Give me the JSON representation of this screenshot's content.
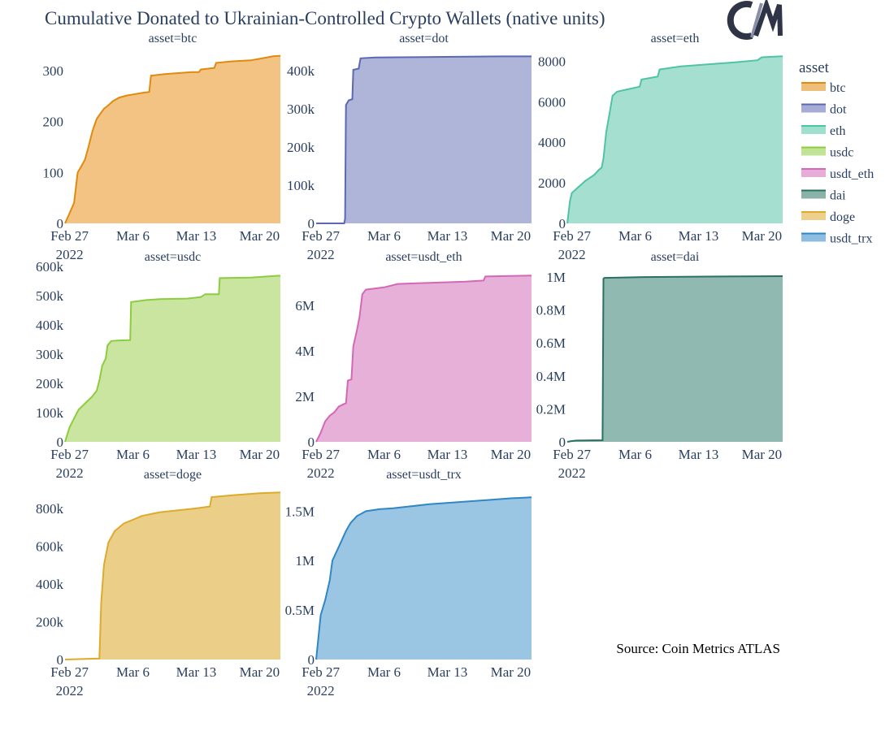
{
  "title": "Cumulative Donated to Ukrainian-Controlled Crypto Wallets (native units)",
  "logo_text": "C/M",
  "source": "Source: Coin Metrics ATLAS",
  "chart_data": {
    "type": "area",
    "x_ticks": [
      "Feb 27",
      "Mar 6",
      "Mar 13",
      "Mar 20"
    ],
    "x_tick_days": [
      0,
      7,
      14,
      21
    ],
    "x_year": "2022",
    "xlim_days": [
      -0.5,
      23.3
    ],
    "legend": {
      "title": "asset",
      "placement": "right",
      "items": [
        {
          "name": "btc",
          "color": "#e08a0f"
        },
        {
          "name": "dot",
          "color": "#5d68b3"
        },
        {
          "name": "eth",
          "color": "#4fc4a5"
        },
        {
          "name": "usdc",
          "color": "#8ccc3f"
        },
        {
          "name": "usdt_eth",
          "color": "#d468b8"
        },
        {
          "name": "dai",
          "color": "#2a7260"
        },
        {
          "name": "doge",
          "color": "#deaa2b"
        },
        {
          "name": "usdt_trx",
          "color": "#2f87c6"
        }
      ]
    },
    "panels": [
      {
        "asset": "btc",
        "title": "asset=btc",
        "color": "#e08a0f",
        "fill": "#f3c383",
        "ylim": [
          0,
          330
        ],
        "y_ticks": [
          {
            "v": 0,
            "label": "0"
          },
          {
            "v": 100,
            "label": "100"
          },
          {
            "v": 200,
            "label": "200"
          },
          {
            "v": 300,
            "label": "300"
          }
        ],
        "points": [
          [
            -0.5,
            0
          ],
          [
            0,
            20
          ],
          [
            0.5,
            40
          ],
          [
            0.9,
            100
          ],
          [
            1.3,
            112
          ],
          [
            1.7,
            125
          ],
          [
            2.1,
            150
          ],
          [
            2.4,
            172
          ],
          [
            2.6,
            185
          ],
          [
            3,
            205
          ],
          [
            3.4,
            215
          ],
          [
            3.8,
            225
          ],
          [
            4.3,
            232
          ],
          [
            4.8,
            240
          ],
          [
            5.5,
            247
          ],
          [
            6.3,
            251
          ],
          [
            7,
            253
          ],
          [
            8,
            256
          ],
          [
            8.8,
            258
          ],
          [
            9,
            290
          ],
          [
            10.5,
            293
          ],
          [
            12,
            295
          ],
          [
            13.5,
            297
          ],
          [
            14.3,
            297
          ],
          [
            14.5,
            302
          ],
          [
            15.5,
            304
          ],
          [
            16,
            305
          ],
          [
            16.2,
            315
          ],
          [
            18,
            318
          ],
          [
            20,
            320
          ],
          [
            21,
            323
          ],
          [
            22.5,
            328
          ],
          [
            23.3,
            329
          ]
        ]
      },
      {
        "asset": "dot",
        "title": "asset=dot",
        "color": "#5d68b3",
        "fill": "#afb4d9",
        "ylim": [
          0,
          440000
        ],
        "y_ticks": [
          {
            "v": 0,
            "label": "0"
          },
          {
            "v": 100000,
            "label": "100k"
          },
          {
            "v": 200000,
            "label": "200k"
          },
          {
            "v": 300000,
            "label": "300k"
          },
          {
            "v": 400000,
            "label": "400k"
          }
        ],
        "points": [
          [
            -0.5,
            0
          ],
          [
            2.6,
            0
          ],
          [
            2.7,
            12000
          ],
          [
            2.8,
            310000
          ],
          [
            3.1,
            322000
          ],
          [
            3.5,
            325000
          ],
          [
            3.6,
            402000
          ],
          [
            4.2,
            405000
          ],
          [
            4.4,
            432000
          ],
          [
            6,
            434000
          ],
          [
            10,
            435000
          ],
          [
            15,
            436000
          ],
          [
            20,
            437000
          ],
          [
            23.3,
            437000
          ]
        ]
      },
      {
        "asset": "eth",
        "title": "asset=eth",
        "color": "#4fc4a5",
        "fill": "#a5dfd0",
        "ylim": [
          0,
          8300
        ],
        "y_ticks": [
          {
            "v": 0,
            "label": "0"
          },
          {
            "v": 2000,
            "label": "2000"
          },
          {
            "v": 4000,
            "label": "4000"
          },
          {
            "v": 6000,
            "label": "6000"
          },
          {
            "v": 8000,
            "label": "8000"
          }
        ],
        "points": [
          [
            -0.5,
            0
          ],
          [
            -0.2,
            1100
          ],
          [
            0,
            1500
          ],
          [
            0.5,
            1700
          ],
          [
            1,
            1900
          ],
          [
            1.5,
            2100
          ],
          [
            2,
            2250
          ],
          [
            2.5,
            2400
          ],
          [
            3,
            2650
          ],
          [
            3.3,
            2750
          ],
          [
            3.5,
            3200
          ],
          [
            3.8,
            4500
          ],
          [
            4.2,
            5500
          ],
          [
            4.5,
            6300
          ],
          [
            5,
            6500
          ],
          [
            6,
            6600
          ],
          [
            7.5,
            6750
          ],
          [
            7.7,
            7100
          ],
          [
            9.5,
            7250
          ],
          [
            9.7,
            7600
          ],
          [
            12,
            7750
          ],
          [
            15,
            7850
          ],
          [
            18,
            7950
          ],
          [
            20.5,
            8050
          ],
          [
            21,
            8200
          ],
          [
            23.3,
            8250
          ]
        ]
      },
      {
        "asset": "usdc",
        "title": "asset=usdc",
        "color": "#8ccc3f",
        "fill": "#cae59f",
        "ylim": [
          0,
          575000
        ],
        "y_ticks": [
          {
            "v": 0,
            "label": "0"
          },
          {
            "v": 100000,
            "label": "100k"
          },
          {
            "v": 200000,
            "label": "200k"
          },
          {
            "v": 300000,
            "label": "300k"
          },
          {
            "v": 400000,
            "label": "400k"
          },
          {
            "v": 500000,
            "label": "500k"
          },
          {
            "v": 600000,
            "label": "600k"
          }
        ],
        "points": [
          [
            -0.5,
            0
          ],
          [
            0,
            50000
          ],
          [
            0.5,
            80000
          ],
          [
            1,
            110000
          ],
          [
            1.5,
            125000
          ],
          [
            2,
            140000
          ],
          [
            2.5,
            155000
          ],
          [
            3,
            175000
          ],
          [
            3.3,
            210000
          ],
          [
            3.6,
            260000
          ],
          [
            4,
            285000
          ],
          [
            4.2,
            330000
          ],
          [
            4.6,
            345000
          ],
          [
            5.5,
            347000
          ],
          [
            6.7,
            348000
          ],
          [
            6.8,
            478000
          ],
          [
            8.5,
            485000
          ],
          [
            10,
            488000
          ],
          [
            13,
            490000
          ],
          [
            14.5,
            495000
          ],
          [
            15,
            505000
          ],
          [
            16.5,
            505000
          ],
          [
            16.6,
            560000
          ],
          [
            20,
            562000
          ],
          [
            23,
            568000
          ],
          [
            23.3,
            568000
          ]
        ]
      },
      {
        "asset": "usdt_eth",
        "title": "asset=usdt_eth",
        "color": "#d468b8",
        "fill": "#e6b0d9",
        "ylim": [
          0,
          7400000
        ],
        "y_ticks": [
          {
            "v": 0,
            "label": "0"
          },
          {
            "v": 2000000,
            "label": "2M"
          },
          {
            "v": 4000000,
            "label": "4M"
          },
          {
            "v": 6000000,
            "label": "6M"
          }
        ],
        "points": [
          [
            -0.5,
            0
          ],
          [
            0,
            400000
          ],
          [
            0.5,
            900000
          ],
          [
            1,
            1150000
          ],
          [
            1.5,
            1300000
          ],
          [
            2,
            1550000
          ],
          [
            2.5,
            1650000
          ],
          [
            2.8,
            1700000
          ],
          [
            3,
            2700000
          ],
          [
            3.4,
            2750000
          ],
          [
            3.6,
            4200000
          ],
          [
            4,
            4900000
          ],
          [
            4.3,
            5500000
          ],
          [
            4.6,
            6500000
          ],
          [
            5,
            6700000
          ],
          [
            7,
            6800000
          ],
          [
            8.5,
            6950000
          ],
          [
            12,
            7000000
          ],
          [
            16,
            7050000
          ],
          [
            18,
            7100000
          ],
          [
            18.2,
            7280000
          ],
          [
            21,
            7300000
          ],
          [
            23.3,
            7320000
          ]
        ]
      },
      {
        "asset": "dai",
        "title": "asset=dai",
        "color": "#2a7260",
        "fill": "#8fb9b1",
        "ylim": [
          0,
          1020000
        ],
        "y_ticks": [
          {
            "v": 0,
            "label": "0"
          },
          {
            "v": 200000,
            "label": "0.2M"
          },
          {
            "v": 400000,
            "label": "0.4M"
          },
          {
            "v": 600000,
            "label": "0.6M"
          },
          {
            "v": 800000,
            "label": "0.8M"
          },
          {
            "v": 1000000,
            "label": "1M"
          }
        ],
        "points": [
          [
            -0.5,
            0
          ],
          [
            0,
            5000
          ],
          [
            0.5,
            8000
          ],
          [
            3.4,
            10000
          ],
          [
            3.5,
            990000
          ],
          [
            3.6,
            995000
          ],
          [
            8,
            1000000
          ],
          [
            15,
            1003000
          ],
          [
            23.3,
            1005000
          ]
        ]
      },
      {
        "asset": "doge",
        "title": "asset=doge",
        "color": "#deaa2b",
        "fill": "#ebcf88",
        "ylim": [
          0,
          890000
        ],
        "y_ticks": [
          {
            "v": 0,
            "label": "0"
          },
          {
            "v": 200000,
            "label": "200k"
          },
          {
            "v": 400000,
            "label": "400k"
          },
          {
            "v": 600000,
            "label": "600k"
          },
          {
            "v": 800000,
            "label": "800k"
          }
        ],
        "points": [
          [
            -0.5,
            0
          ],
          [
            3.3,
            5000
          ],
          [
            3.5,
            300000
          ],
          [
            3.8,
            500000
          ],
          [
            4.3,
            620000
          ],
          [
            5,
            680000
          ],
          [
            6,
            720000
          ],
          [
            7,
            740000
          ],
          [
            8,
            760000
          ],
          [
            9,
            770000
          ],
          [
            10,
            780000
          ],
          [
            12,
            790000
          ],
          [
            14,
            800000
          ],
          [
            15.5,
            810000
          ],
          [
            15.7,
            860000
          ],
          [
            18,
            870000
          ],
          [
            21,
            880000
          ],
          [
            23.3,
            885000
          ]
        ]
      },
      {
        "asset": "usdt_trx",
        "title": "asset=usdt_trx",
        "color": "#2f87c6",
        "fill": "#9ac5e3",
        "ylim": [
          0,
          1700000
        ],
        "y_ticks": [
          {
            "v": 0,
            "label": "0"
          },
          {
            "v": 500000,
            "label": "0.5M"
          },
          {
            "v": 1000000,
            "label": "1M"
          },
          {
            "v": 1500000,
            "label": "1.5M"
          }
        ],
        "points": [
          [
            -0.5,
            0
          ],
          [
            0,
            450000
          ],
          [
            0.5,
            600000
          ],
          [
            1,
            800000
          ],
          [
            1.3,
            1000000
          ],
          [
            1.8,
            1100000
          ],
          [
            2.3,
            1200000
          ],
          [
            2.8,
            1300000
          ],
          [
            3.3,
            1380000
          ],
          [
            4,
            1450000
          ],
          [
            5,
            1500000
          ],
          [
            6.5,
            1520000
          ],
          [
            8,
            1530000
          ],
          [
            10,
            1550000
          ],
          [
            12,
            1570000
          ],
          [
            15,
            1590000
          ],
          [
            18,
            1610000
          ],
          [
            21,
            1630000
          ],
          [
            23.3,
            1640000
          ]
        ]
      }
    ]
  }
}
